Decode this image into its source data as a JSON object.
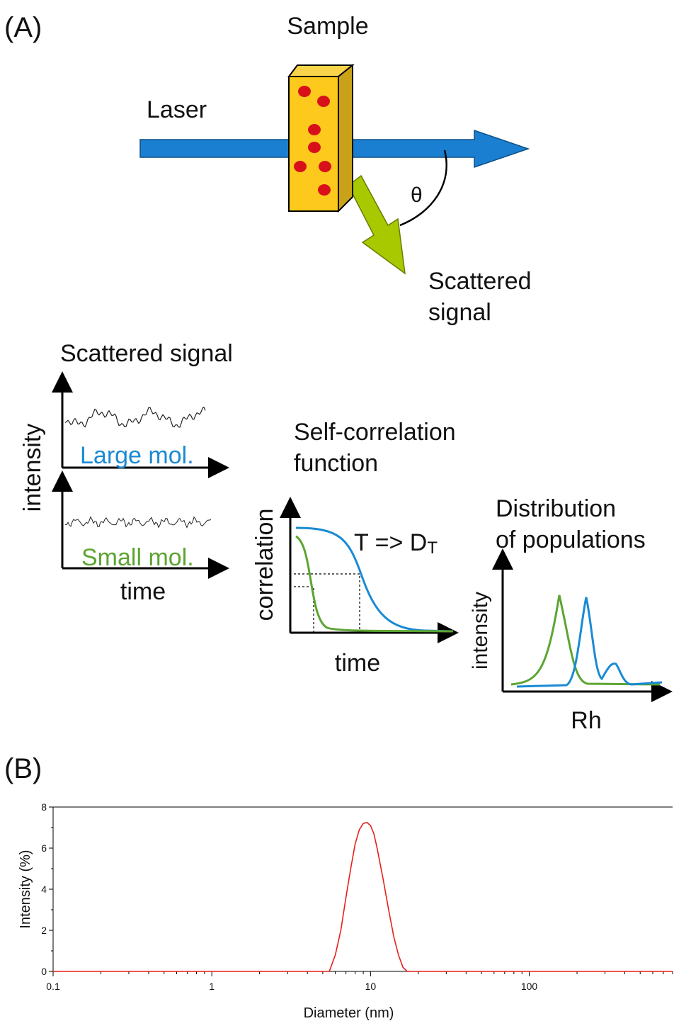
{
  "panel_a": {
    "label": "(A)",
    "sample": "Sample",
    "laser": "Laser",
    "angle": "θ",
    "scattered_signal": [
      "Scattered",
      "signal"
    ],
    "signal_title": "Scattered signal",
    "signal_y_label": "intensity",
    "large_mol": "Large mol.",
    "small_mol": "Small mol.",
    "signal_x_label": "time",
    "correlation_title": [
      "Self-correlation",
      "function"
    ],
    "correlation_y_label": "correlation",
    "correlation_x_label": "time",
    "relation": {
      "main": "T => D",
      "subscript": "T"
    },
    "distribution_title": [
      "Distribution",
      "of populations"
    ],
    "distribution_y_label": "intensity",
    "distribution_x_label": "Rh"
  },
  "panel_b_label": "(B)",
  "chart_data": {
    "type": "line",
    "x_label": "Diameter (nm)",
    "y_label": "Intensity (%)",
    "xscale": "log",
    "xlim": [
      0.1,
      800
    ],
    "ylim": [
      0,
      8
    ],
    "xticks": [
      0.1,
      1,
      10,
      100
    ],
    "yticks": [
      0,
      2,
      4,
      6,
      8
    ],
    "x": [
      0.1,
      5.5,
      6,
      6.5,
      7,
      7.5,
      8,
      8.5,
      9,
      9.5,
      10,
      10.5,
      11,
      12,
      13,
      14,
      15,
      16,
      17,
      800
    ],
    "series": [
      {
        "color": "#e8201a",
        "values": [
          0,
          0,
          0.8,
          2.0,
          3.6,
          5.0,
          6.2,
          6.9,
          7.2,
          7.25,
          7.1,
          6.7,
          6.0,
          4.5,
          3.0,
          1.7,
          0.8,
          0.2,
          0,
          0
        ]
      }
    ]
  }
}
